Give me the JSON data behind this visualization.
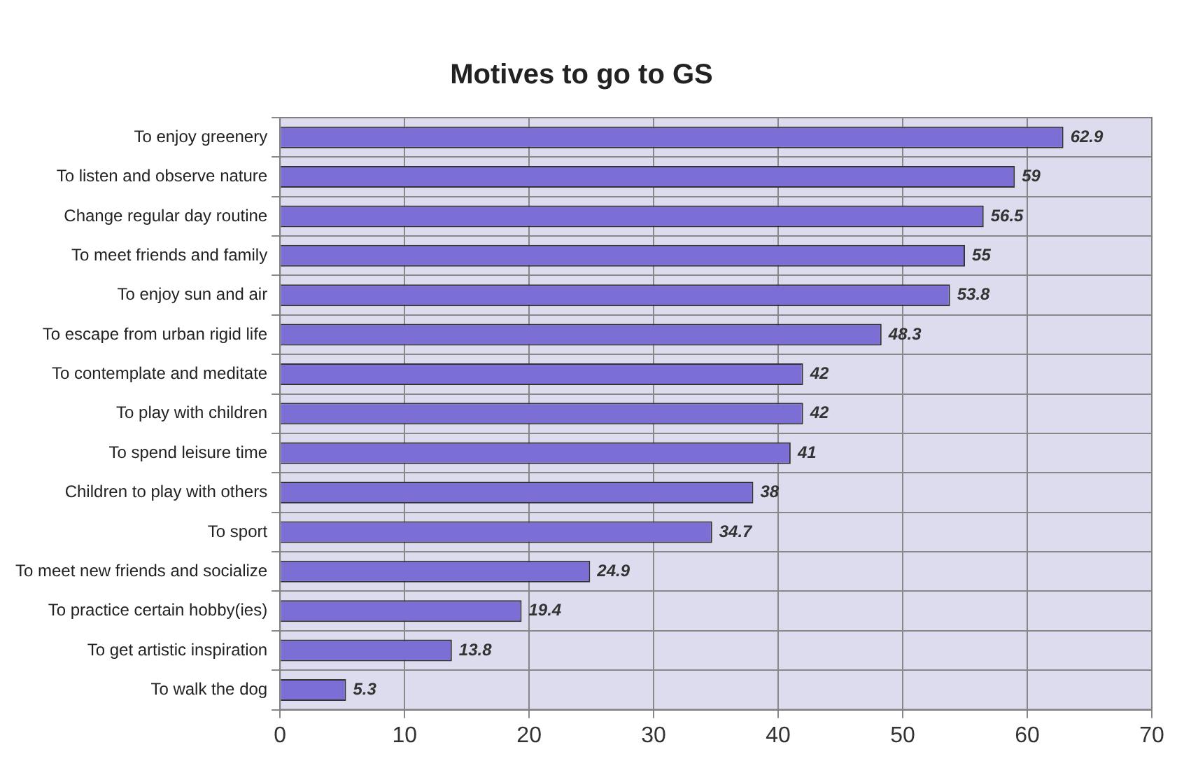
{
  "chart_data": {
    "type": "bar",
    "orientation": "horizontal",
    "title": "Motives to go to GS",
    "categories": [
      "To enjoy greenery",
      "To listen and observe nature",
      "Change regular day routine",
      "To meet friends and family",
      "To enjoy sun and air",
      "To escape from urban rigid life",
      "To contemplate and meditate",
      "To play with children",
      "To spend leisure time",
      "Children to play with others",
      "To sport",
      "To meet new friends and socialize",
      "To practice certain hobby(ies)",
      "To get artistic inspiration",
      "To walk the dog"
    ],
    "values": [
      62.9,
      59,
      56.5,
      55,
      53.8,
      48.3,
      42,
      42,
      41,
      38,
      34.7,
      24.9,
      19.4,
      13.8,
      5.3
    ],
    "color": "#7b6fd6",
    "xlim": [
      0,
      70
    ],
    "xticks": [
      0,
      10,
      20,
      30,
      40,
      50,
      60,
      70
    ],
    "grid": true,
    "data_labels": true,
    "legend": false
  }
}
